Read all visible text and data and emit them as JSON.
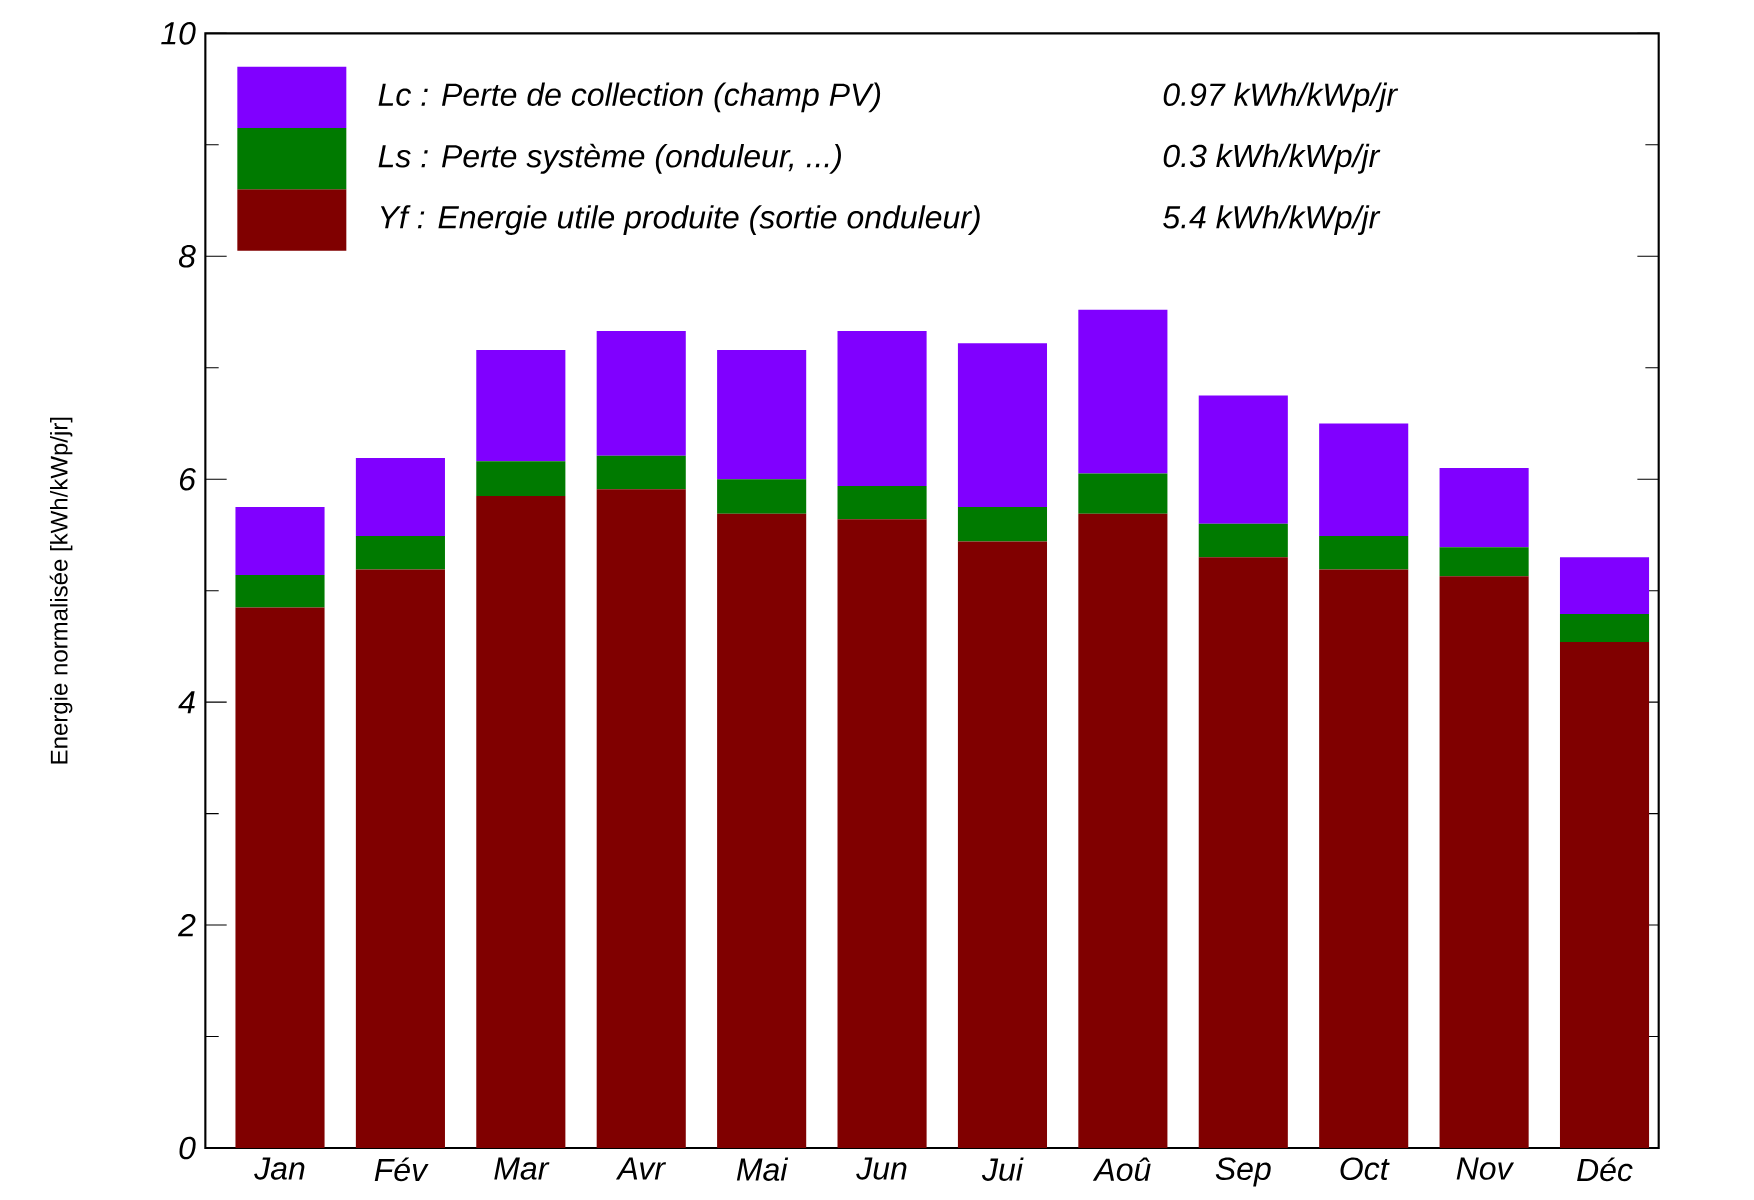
{
  "chart_data": {
    "type": "bar",
    "stacked": true,
    "ylabel": "Energie normalisée [kWh/kWp/jr]",
    "categories": [
      "Jan",
      "Fév",
      "Mar",
      "Avr",
      "Mai",
      "Jun",
      "Jui",
      "Aoû",
      "Sep",
      "Oct",
      "Nov",
      "Déc"
    ],
    "series": [
      {
        "name": "Yf : Energie utile produite  (sortie onduleur)",
        "color": "#800000",
        "values": [
          4.85,
          5.19,
          5.85,
          5.91,
          5.69,
          5.64,
          5.44,
          5.69,
          5.3,
          5.19,
          5.13,
          4.54
        ]
      },
      {
        "name": "Ls : Perte système  (onduleur, ...)",
        "color": "#007a00",
        "values": [
          0.29,
          0.3,
          0.31,
          0.3,
          0.31,
          0.3,
          0.31,
          0.36,
          0.3,
          0.3,
          0.26,
          0.25
        ]
      },
      {
        "name": "Lc : Perte de collection (champ PV)",
        "color": "#8000ff",
        "values": [
          0.61,
          0.7,
          1.0,
          1.12,
          1.16,
          1.39,
          1.47,
          1.47,
          1.15,
          1.01,
          0.71,
          0.51
        ]
      }
    ],
    "annotations": [
      "0.97 kWh/kWp/jr",
      "0.3 kWh/kWp/jr",
      "5.4 kWh/kWp/jr"
    ],
    "ylim": [
      0,
      10
    ],
    "yticks": [
      0,
      2,
      4,
      6,
      8,
      10
    ],
    "legend": "top left"
  }
}
